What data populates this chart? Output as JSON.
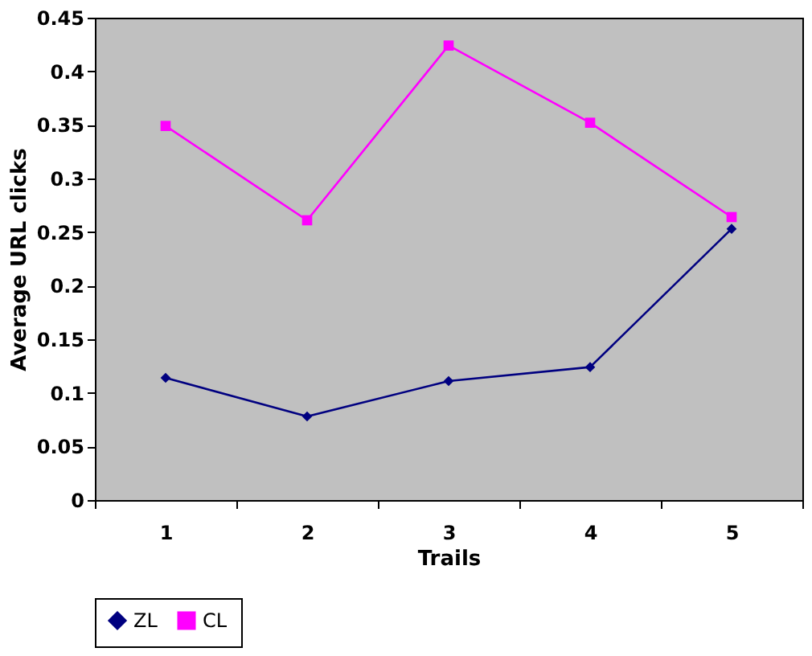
{
  "chart_data": {
    "type": "line",
    "xlabel": "Trails",
    "ylabel": "Average URL clicks",
    "categories": [
      "1",
      "2",
      "3",
      "4",
      "5"
    ],
    "series": [
      {
        "name": "ZL",
        "color": "#000080",
        "marker": "diamond",
        "values": [
          0.114,
          0.078,
          0.111,
          0.124,
          0.253
        ]
      },
      {
        "name": "CL",
        "color": "#ff00ff",
        "marker": "square",
        "values": [
          0.349,
          0.261,
          0.424,
          0.352,
          0.264
        ]
      }
    ],
    "ylim": [
      0,
      0.45
    ],
    "yticks": [
      0,
      0.05,
      0.1,
      0.15,
      0.2,
      0.25,
      0.3,
      0.35,
      0.4,
      0.45
    ],
    "grid": false,
    "legend": "bottom"
  }
}
